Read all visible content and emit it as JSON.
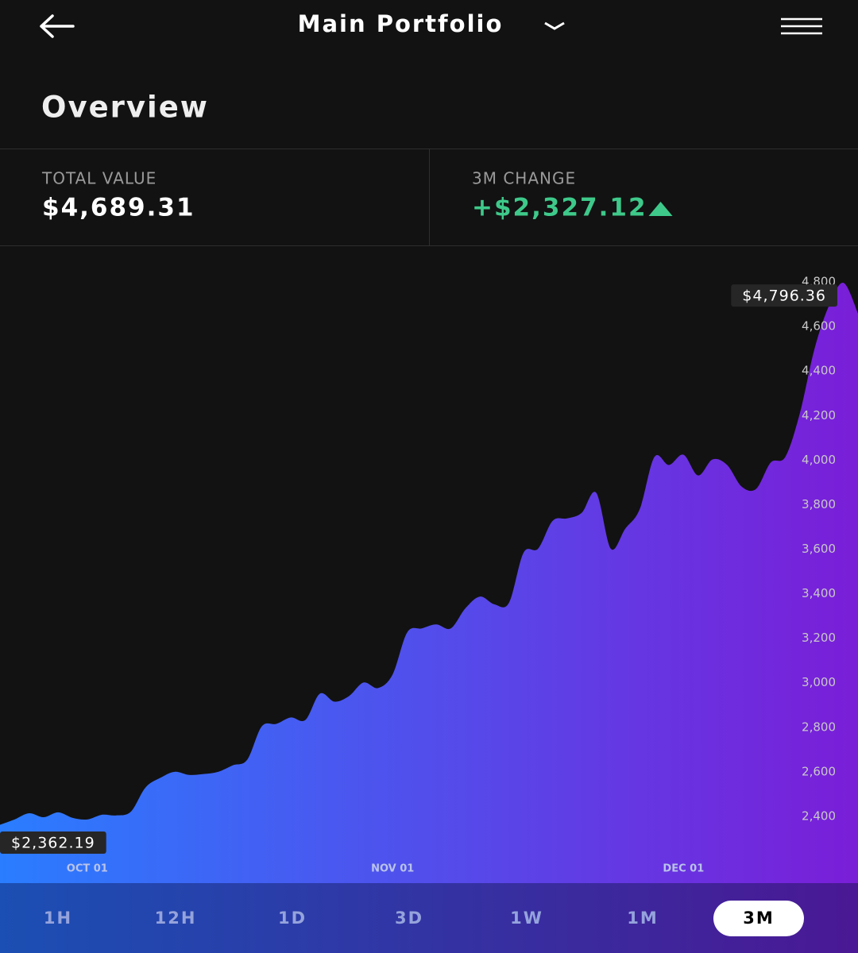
{
  "header": {
    "title": "Main Portfolio"
  },
  "overview": {
    "title": "Overview"
  },
  "stats": [
    {
      "label": "TOTAL VALUE",
      "value": "$4,689.31"
    },
    {
      "label": "3M CHANGE",
      "value": "+$2,327.12"
    }
  ],
  "chart_data": {
    "type": "area",
    "categories": [
      null,
      null,
      null,
      null,
      null,
      null,
      "OCT 01",
      null,
      null,
      null,
      null,
      null,
      null,
      null,
      null,
      null,
      null,
      null,
      null,
      null,
      null,
      null,
      null,
      null,
      null,
      null,
      null,
      "NOV 01",
      null,
      null,
      null,
      null,
      null,
      null,
      null,
      null,
      null,
      null,
      null,
      null,
      null,
      null,
      null,
      null,
      null,
      null,
      null,
      "DEC 01",
      null,
      null,
      null,
      null,
      null,
      null,
      null,
      null,
      null,
      null,
      null,
      null
    ],
    "values": [
      2362.19,
      2386,
      2414,
      2396,
      2418,
      2393,
      2386,
      2407,
      2404,
      2421,
      2529,
      2572,
      2600,
      2586,
      2590,
      2600,
      2629,
      2654,
      2804,
      2815,
      2844,
      2833,
      2951,
      2915,
      2940,
      3001,
      2976,
      3037,
      3226,
      3244,
      3262,
      3244,
      3334,
      3387,
      3352,
      3359,
      3584,
      3602,
      3727,
      3738,
      3763,
      3853,
      3602,
      3692,
      3781,
      4014,
      3978,
      4024,
      3931,
      4003,
      3978,
      3881,
      3871,
      3989,
      4014,
      4210,
      4497,
      4693,
      4796.36,
      4658
    ],
    "value_labels": [
      "$2,362.19",
      null,
      null,
      null,
      null,
      null,
      null,
      null,
      null,
      null,
      null,
      null,
      null,
      null,
      null,
      null,
      null,
      null,
      null,
      null,
      null,
      null,
      null,
      null,
      null,
      null,
      null,
      null,
      null,
      null,
      null,
      null,
      null,
      null,
      null,
      null,
      null,
      null,
      null,
      null,
      null,
      null,
      null,
      null,
      null,
      null,
      null,
      null,
      null,
      null,
      null,
      null,
      null,
      null,
      null,
      null,
      null,
      null,
      "$4,796.36",
      null
    ],
    "colors": [
      "#2a7dff",
      "#7a1ed8"
    ],
    "ylim": [
      2100,
      4950
    ],
    "yticks": [
      {
        "value": 2400,
        "label": "2,400"
      },
      {
        "value": 2600,
        "label": "2,600"
      },
      {
        "value": 2800,
        "label": "2,800"
      },
      {
        "value": 3000,
        "label": "3,000"
      },
      {
        "value": 3200,
        "label": "3,200"
      },
      {
        "value": 3400,
        "label": "3,400"
      },
      {
        "value": 3600,
        "label": "3,600"
      },
      {
        "value": 3800,
        "label": "3,800"
      },
      {
        "value": 4000,
        "label": "4,000"
      },
      {
        "value": 4200,
        "label": "4,200"
      },
      {
        "value": 4400,
        "label": "4,400"
      },
      {
        "value": 4600,
        "label": "4,600"
      },
      {
        "value": 4800,
        "label": "4,800"
      }
    ],
    "grid": false
  },
  "ranges": [
    "1H",
    "12H",
    "1D",
    "3D",
    "1W",
    "1M",
    "3M"
  ],
  "selected_range": "3M"
}
